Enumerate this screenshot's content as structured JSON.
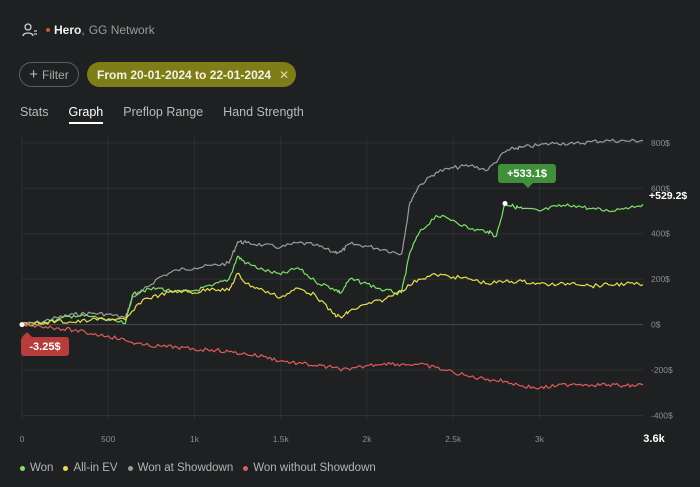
{
  "header": {
    "player": "Hero",
    "separator": ",",
    "network": "GG Network",
    "icon": "user-icon"
  },
  "filters": {
    "filter_label": "Filter",
    "filter_icon": "plus-icon",
    "date_range": "From 20-01-2024 to 22-01-2024",
    "remove_icon": "close-icon",
    "chip_color": "#7f7d18"
  },
  "tabs": [
    {
      "label": "Stats",
      "active": false
    },
    {
      "label": "Graph",
      "active": true
    },
    {
      "label": "Preflop Range",
      "active": false
    },
    {
      "label": "Hand Strength",
      "active": false
    }
  ],
  "callouts": {
    "peak": "+533.1$",
    "low": "-3.25$",
    "end": "+529.2$"
  },
  "legend": [
    {
      "label": "Won",
      "color": "#7de06a"
    },
    {
      "label": "All-in EV",
      "color": "#e6de4f"
    },
    {
      "label": "Won at Showdown",
      "color": "#9a9c9c"
    },
    {
      "label": "Won without Showdown",
      "color": "#e05b5b"
    }
  ],
  "chart_data": {
    "type": "line",
    "x_ticks": [
      "0",
      "500",
      "1k",
      "1.5k",
      "2k",
      "2.5k",
      "3k",
      "3.6k"
    ],
    "x_tick_values": [
      0,
      500,
      1000,
      1500,
      2000,
      2500,
      3000,
      3600
    ],
    "y_ticks": [
      "800$",
      "600$",
      "400$",
      "200$",
      "0$",
      "-200$",
      "-400$"
    ],
    "y_tick_values": [
      800,
      600,
      400,
      200,
      0,
      -200,
      -400
    ],
    "xlim": [
      0,
      3600
    ],
    "ylim": [
      -420,
      830
    ],
    "grid": true,
    "legend_position": "bottom",
    "series": [
      {
        "name": "Won at Showdown",
        "color": "#9a9c9c",
        "x": [
          0,
          100,
          200,
          300,
          400,
          500,
          600,
          640,
          700,
          800,
          900,
          1000,
          1100,
          1200,
          1250,
          1300,
          1400,
          1500,
          1600,
          1700,
          1800,
          1850,
          1900,
          2000,
          2100,
          2200,
          2250,
          2300,
          2400,
          2500,
          2600,
          2700,
          2800,
          2850,
          2900,
          3000,
          3100,
          3200,
          3300,
          3400,
          3500,
          3600
        ],
        "y": [
          0,
          10,
          30,
          45,
          50,
          45,
          30,
          120,
          150,
          210,
          240,
          250,
          260,
          270,
          365,
          360,
          350,
          340,
          360,
          350,
          320,
          320,
          355,
          345,
          330,
          310,
          540,
          610,
          670,
          690,
          700,
          680,
          760,
          775,
          780,
          790,
          800,
          795,
          805,
          810,
          808,
          810
        ]
      },
      {
        "name": "Won",
        "color": "#7de06a",
        "x": [
          0,
          100,
          200,
          300,
          400,
          500,
          600,
          640,
          700,
          800,
          900,
          1000,
          1100,
          1200,
          1250,
          1300,
          1400,
          1500,
          1600,
          1700,
          1800,
          1850,
          1900,
          2000,
          2100,
          2200,
          2250,
          2300,
          2400,
          2500,
          2600,
          2700,
          2750,
          2800,
          2850,
          2900,
          3000,
          3100,
          3200,
          3300,
          3400,
          3500,
          3600
        ],
        "y": [
          -3.25,
          5,
          20,
          40,
          35,
          20,
          5,
          130,
          150,
          160,
          140,
          150,
          170,
          200,
          300,
          270,
          240,
          220,
          250,
          190,
          160,
          140,
          200,
          180,
          150,
          140,
          320,
          400,
          480,
          460,
          420,
          410,
          390,
          533.1,
          520,
          510,
          500,
          520,
          525,
          510,
          500,
          515,
          529.2
        ]
      },
      {
        "name": "All-in EV",
        "color": "#e6de4f",
        "x": [
          0,
          100,
          200,
          300,
          400,
          500,
          600,
          700,
          800,
          900,
          1000,
          1100,
          1200,
          1250,
          1300,
          1400,
          1500,
          1600,
          1700,
          1800,
          1850,
          1900,
          2000,
          2100,
          2200,
          2300,
          2400,
          2500,
          2600,
          2700,
          2800,
          2900,
          3000,
          3100,
          3200,
          3300,
          3400,
          3500,
          3600
        ],
        "y": [
          0,
          5,
          15,
          10,
          20,
          25,
          20,
          110,
          130,
          150,
          140,
          160,
          150,
          225,
          180,
          150,
          120,
          160,
          130,
          50,
          30,
          60,
          90,
          110,
          150,
          200,
          220,
          210,
          200,
          180,
          190,
          190,
          180,
          175,
          185,
          170,
          175,
          180,
          175
        ]
      },
      {
        "name": "Won without Showdown",
        "color": "#e05b5b",
        "x": [
          0,
          100,
          200,
          300,
          400,
          500,
          600,
          700,
          800,
          900,
          1000,
          1100,
          1200,
          1300,
          1400,
          1500,
          1600,
          1700,
          1800,
          1900,
          2000,
          2100,
          2200,
          2300,
          2400,
          2500,
          2600,
          2700,
          2800,
          2900,
          3000,
          3100,
          3200,
          3300,
          3400,
          3500,
          3600
        ],
        "y": [
          0,
          -5,
          -15,
          -25,
          -40,
          -50,
          -70,
          -90,
          -95,
          -100,
          -110,
          -110,
          -120,
          -130,
          -140,
          -160,
          -170,
          -180,
          -190,
          -200,
          -180,
          -170,
          -175,
          -175,
          -190,
          -210,
          -230,
          -240,
          -250,
          -270,
          -280,
          -270,
          -260,
          -265,
          -265,
          -270,
          -265
        ]
      }
    ]
  }
}
